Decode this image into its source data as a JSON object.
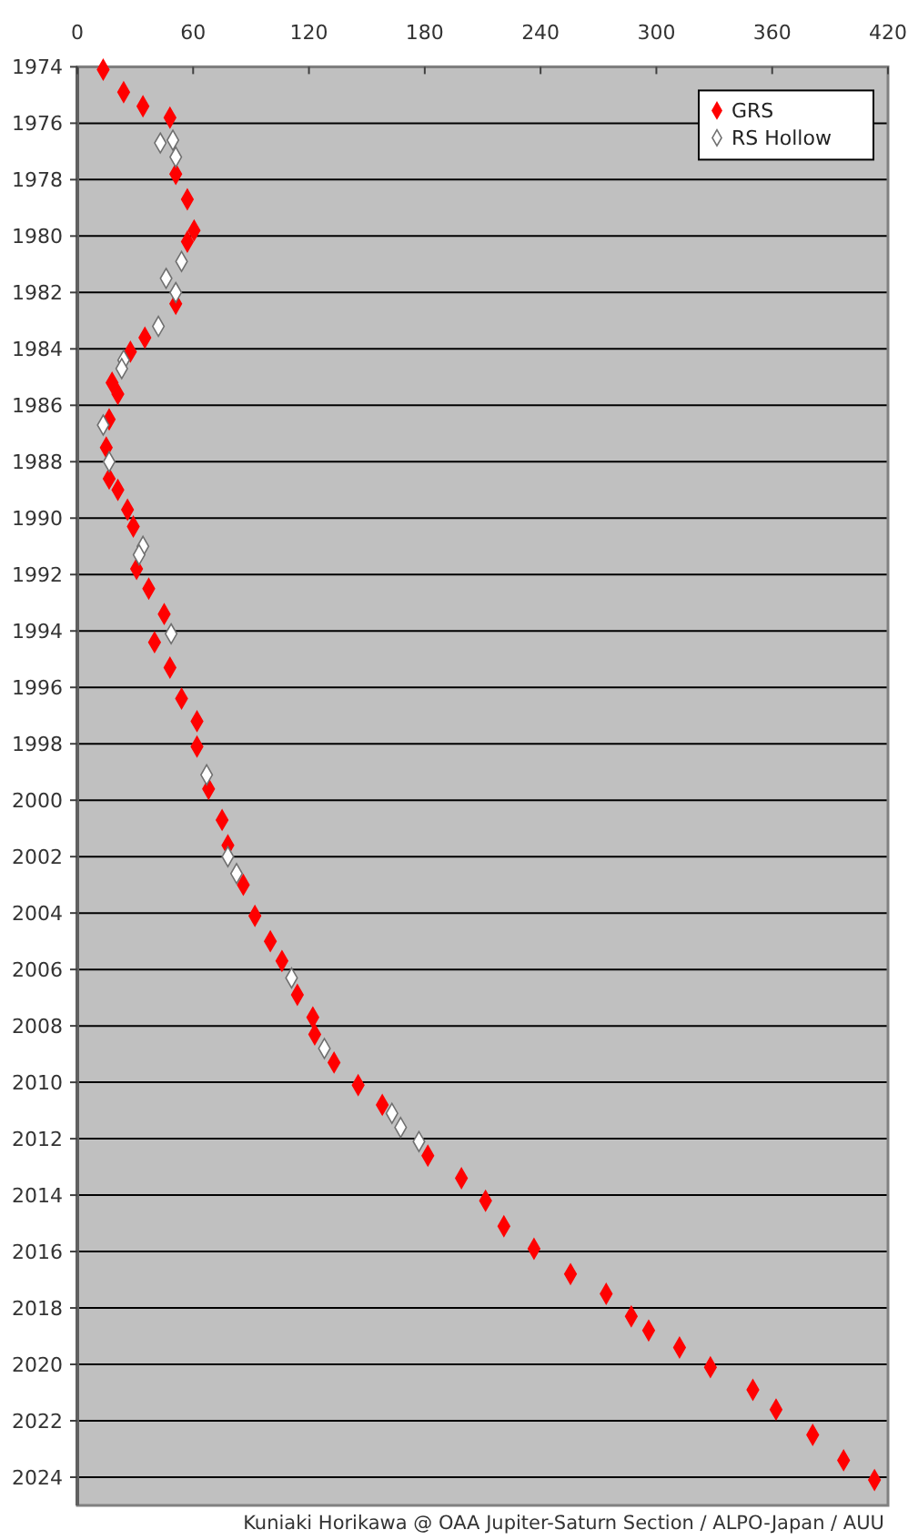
{
  "chart_data": {
    "type": "scatter",
    "xlim": [
      0,
      420
    ],
    "xticks": [
      0,
      60,
      120,
      180,
      240,
      300,
      360,
      420
    ],
    "ylim": [
      2025,
      1974
    ],
    "yticks": [
      1974,
      1976,
      1978,
      1980,
      1982,
      1984,
      1986,
      1988,
      1990,
      1992,
      1994,
      1996,
      1998,
      2000,
      2002,
      2004,
      2006,
      2008,
      2010,
      2012,
      2014,
      2016,
      2018,
      2020,
      2022,
      2024
    ],
    "grid": "y",
    "legend": "top right",
    "marker": "diamond",
    "annotations": [
      "Kuniaki Horikawa @ OAA Jupiter-Saturn Section / ALPO-Japan / AUU"
    ],
    "series": [
      {
        "name": "GRS",
        "color": "#ff0000",
        "x": [
          13.4,
          24,
          34,
          48,
          51,
          57,
          60.5,
          57,
          51,
          35,
          27.5,
          18,
          21,
          16.5,
          15,
          16.5,
          21,
          26,
          29,
          30.7,
          37,
          45,
          40,
          48,
          54,
          62,
          62,
          68,
          75,
          78,
          86,
          92,
          100,
          106,
          114,
          122,
          123,
          133,
          145.5,
          158,
          181.6,
          199,
          211.5,
          221,
          236.6,
          255.5,
          274,
          287,
          296,
          312,
          328,
          350,
          362,
          381,
          397,
          413
        ],
        "values": [
          1974.1,
          1974.9,
          1975.4,
          1975.8,
          1977.8,
          1978.7,
          1979.8,
          1980.2,
          1982.4,
          1983.6,
          1984.1,
          1985.2,
          1985.6,
          1986.5,
          1987.5,
          1988.6,
          1989.0,
          1989.7,
          1990.3,
          1991.8,
          1992.5,
          1993.4,
          1994.4,
          1995.3,
          1996.4,
          1997.2,
          1998.1,
          1999.6,
          2000.7,
          2001.6,
          2003.0,
          2004.1,
          2005.0,
          2005.7,
          2006.9,
          2007.7,
          2008.3,
          2009.3,
          2010.1,
          2010.8,
          2012.6,
          2013.4,
          2014.2,
          2015.1,
          2015.9,
          2016.8,
          2017.5,
          2018.3,
          2018.8,
          2019.4,
          2020.1,
          2020.9,
          2021.6,
          2022.5,
          2023.4,
          2024.1
        ]
      },
      {
        "name": "RS Hollow",
        "color": "#ffffff",
        "x": [
          43,
          49.5,
          51,
          54,
          46,
          51,
          42,
          24,
          23,
          13.4,
          16.5,
          34,
          32,
          48.6,
          67,
          78,
          82.5,
          111,
          128,
          163,
          167.5,
          177
        ],
        "values": [
          1976.7,
          1976.6,
          1977.2,
          1980.9,
          1981.5,
          1982.0,
          1983.2,
          1984.4,
          1984.7,
          1986.7,
          1988.0,
          1991.0,
          1991.3,
          1994.1,
          1999.1,
          2002.0,
          2002.6,
          2006.3,
          2008.8,
          2011.1,
          2011.6,
          2012.1
        ]
      }
    ]
  }
}
